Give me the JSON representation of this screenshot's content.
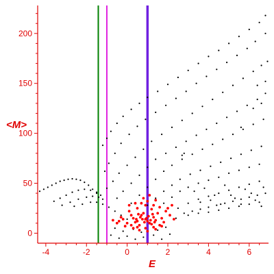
{
  "chart_data": {
    "type": "scatter",
    "xlabel": "E",
    "ylabel": "<M>",
    "xlim": [
      -4.4,
      6.95
    ],
    "ylim": [
      -10,
      228
    ],
    "x_ticks": [
      -4,
      -2,
      0,
      2,
      4,
      6
    ],
    "x_tick_labels": [
      "-4",
      "-2",
      "0",
      "2",
      "4",
      "6"
    ],
    "y_ticks": [
      0,
      50,
      100,
      150,
      200
    ],
    "y_tick_labels": [
      "0",
      "50",
      "100",
      "150",
      "200"
    ],
    "axis_color": "#e00000",
    "grid": false,
    "legend": "none",
    "vertical_lines": [
      {
        "x": -1.42,
        "color": "#008000"
      },
      {
        "x": -1.0,
        "color": "#e020e0"
      },
      {
        "x": 1.0,
        "color": "#7020e0"
      }
    ],
    "series": [
      {
        "color": "#000000",
        "marker_size": 1.1,
        "points": [
          [
            -4.3,
            42
          ],
          [
            -4.1,
            44
          ],
          [
            -3.9,
            46
          ],
          [
            -3.7,
            48
          ],
          [
            -3.5,
            50
          ],
          [
            -3.3,
            52
          ],
          [
            -3.1,
            53
          ],
          [
            -2.9,
            54
          ],
          [
            -2.7,
            54.5
          ],
          [
            -2.5,
            54
          ],
          [
            -2.3,
            53
          ],
          [
            -2.1,
            51
          ],
          [
            -1.9,
            48
          ],
          [
            -1.7,
            44
          ],
          [
            -1.5,
            40
          ],
          [
            -3.6,
            32
          ],
          [
            -3.3,
            35
          ],
          [
            -3.0,
            38
          ],
          [
            -2.7,
            41
          ],
          [
            -2.4,
            43
          ],
          [
            -2.1,
            44
          ],
          [
            -1.8,
            43
          ],
          [
            -1.5,
            41
          ],
          [
            -1.3,
            38
          ],
          [
            -3.2,
            28
          ],
          [
            -2.8,
            31
          ],
          [
            -2.4,
            34
          ],
          [
            -2.0,
            36
          ],
          [
            -1.7,
            37
          ],
          [
            -1.4,
            36
          ],
          [
            -1.2,
            34
          ],
          [
            -2.6,
            27
          ],
          [
            -2.2,
            29
          ],
          [
            -1.8,
            31
          ],
          [
            -1.5,
            31
          ],
          [
            -1.2,
            29
          ],
          [
            -0.9,
            26
          ],
          [
            -0.6,
            22
          ],
          [
            -0.3,
            18
          ],
          [
            0.0,
            14
          ],
          [
            -1.2,
            88
          ],
          [
            -1.0,
            95
          ],
          [
            -0.8,
            102
          ],
          [
            -0.5,
            110
          ],
          [
            -0.2,
            117
          ],
          [
            0.2,
            124
          ],
          [
            0.6,
            130
          ],
          [
            1.0,
            136
          ],
          [
            1.5,
            142
          ],
          [
            2.0,
            149
          ],
          [
            2.5,
            156
          ],
          [
            3.0,
            163
          ],
          [
            3.5,
            170
          ],
          [
            4.0,
            177
          ],
          [
            4.5,
            183
          ],
          [
            5.0,
            190
          ],
          [
            5.5,
            197
          ],
          [
            6.0,
            204
          ],
          [
            6.5,
            211
          ],
          [
            6.8,
            218
          ],
          [
            -1.1,
            62
          ],
          [
            -0.9,
            70
          ],
          [
            -0.6,
            80
          ],
          [
            -0.3,
            90
          ],
          [
            0.1,
            99
          ],
          [
            0.5,
            107
          ],
          [
            0.9,
            114
          ],
          [
            1.4,
            121
          ],
          [
            1.9,
            128
          ],
          [
            2.4,
            135
          ],
          [
            2.9,
            142
          ],
          [
            3.4,
            150
          ],
          [
            3.9,
            157
          ],
          [
            4.4,
            164
          ],
          [
            4.9,
            171
          ],
          [
            5.4,
            178
          ],
          [
            5.9,
            185
          ],
          [
            6.3,
            192
          ],
          [
            6.8,
            200
          ],
          [
            -1.0,
            45
          ],
          [
            -0.7,
            52
          ],
          [
            -0.4,
            60
          ],
          [
            0.0,
            68
          ],
          [
            0.4,
            76
          ],
          [
            0.8,
            84
          ],
          [
            1.2,
            92
          ],
          [
            1.7,
            99
          ],
          [
            2.2,
            106
          ],
          [
            2.7,
            113
          ],
          [
            3.2,
            120
          ],
          [
            3.7,
            127
          ],
          [
            4.2,
            134
          ],
          [
            4.7,
            141
          ],
          [
            5.2,
            148
          ],
          [
            5.7,
            155
          ],
          [
            6.2,
            162
          ],
          [
            6.6,
            168
          ],
          [
            6.9,
            172
          ],
          [
            -0.5,
            35
          ],
          [
            -0.2,
            42
          ],
          [
            0.2,
            50
          ],
          [
            0.6,
            58
          ],
          [
            1.0,
            66
          ],
          [
            1.4,
            74
          ],
          [
            1.9,
            80
          ],
          [
            2.4,
            86
          ],
          [
            2.9,
            92
          ],
          [
            3.4,
            98
          ],
          [
            3.9,
            104
          ],
          [
            4.4,
            110
          ],
          [
            4.9,
            116
          ],
          [
            5.4,
            122
          ],
          [
            5.9,
            128
          ],
          [
            6.4,
            134
          ],
          [
            6.8,
            140
          ],
          [
            0.2,
            30
          ],
          [
            0.6,
            38
          ],
          [
            1.0,
            46
          ],
          [
            1.4,
            54
          ],
          [
            1.8,
            62
          ],
          [
            2.2,
            68
          ],
          [
            2.7,
            74
          ],
          [
            3.2,
            79
          ],
          [
            3.7,
            84
          ],
          [
            4.2,
            89
          ],
          [
            4.7,
            94
          ],
          [
            5.2,
            99
          ],
          [
            5.7,
            104
          ],
          [
            6.2,
            109
          ],
          [
            6.7,
            114
          ],
          [
            1.0,
            28
          ],
          [
            1.4,
            35
          ],
          [
            1.8,
            42
          ],
          [
            2.2,
            48
          ],
          [
            2.6,
            54
          ],
          [
            3.1,
            59
          ],
          [
            3.6,
            63
          ],
          [
            4.1,
            67
          ],
          [
            4.6,
            71
          ],
          [
            5.1,
            75
          ],
          [
            5.6,
            79
          ],
          [
            6.1,
            83
          ],
          [
            6.6,
            87
          ],
          [
            1.8,
            30
          ],
          [
            2.2,
            36
          ],
          [
            2.6,
            42
          ],
          [
            3.0,
            46
          ],
          [
            3.5,
            50
          ],
          [
            4.0,
            53
          ],
          [
            4.5,
            56
          ],
          [
            5.0,
            60
          ],
          [
            5.5,
            63
          ],
          [
            6.0,
            66
          ],
          [
            6.5,
            69
          ],
          [
            2.5,
            25
          ],
          [
            3.0,
            30
          ],
          [
            3.5,
            34
          ],
          [
            4.0,
            37
          ],
          [
            4.5,
            40
          ],
          [
            5.0,
            43
          ],
          [
            5.5,
            46
          ],
          [
            6.0,
            49
          ],
          [
            6.5,
            52
          ],
          [
            2.4,
            15
          ],
          [
            2.8,
            20
          ],
          [
            3.2,
            22
          ],
          [
            3.6,
            24
          ],
          [
            4.0,
            26
          ],
          [
            4.4,
            28
          ],
          [
            4.8,
            30
          ],
          [
            5.2,
            32
          ],
          [
            5.6,
            34
          ],
          [
            6.0,
            36
          ],
          [
            6.4,
            38
          ],
          [
            6.8,
            40
          ],
          [
            3.0,
            18
          ],
          [
            3.5,
            20
          ],
          [
            4.0,
            21
          ],
          [
            4.5,
            23
          ],
          [
            5.0,
            25
          ],
          [
            5.5,
            27
          ],
          [
            6.0,
            29
          ],
          [
            6.5,
            31
          ],
          [
            3.3,
            42
          ],
          [
            3.8,
            45
          ],
          [
            4.3,
            38
          ],
          [
            4.8,
            48
          ],
          [
            5.3,
            35
          ],
          [
            5.8,
            44
          ],
          [
            6.3,
            33
          ],
          [
            6.7,
            46
          ],
          [
            3.6,
            31
          ],
          [
            4.1,
            33
          ],
          [
            4.6,
            29
          ],
          [
            5.1,
            38
          ],
          [
            5.6,
            29
          ],
          [
            6.1,
            40
          ],
          [
            6.6,
            27
          ],
          [
            -0.8,
            -2
          ],
          [
            -0.4,
            -5
          ],
          [
            0.0,
            -3
          ],
          [
            0.4,
            -6
          ],
          [
            0.8,
            -4
          ],
          [
            1.3,
            -2
          ],
          [
            1.7,
            -6
          ],
          [
            2.1,
            -1
          ],
          [
            -0.6,
            5
          ],
          [
            -0.2,
            2
          ],
          [
            0.3,
            4
          ],
          [
            0.7,
            1
          ],
          [
            1.5,
            3
          ],
          [
            1.9,
            6
          ],
          [
            6.2,
            125
          ],
          [
            6.6,
            130
          ],
          [
            6.4,
            148
          ],
          [
            6.8,
            152
          ],
          [
            5.6,
            106
          ],
          [
            2.8,
            80
          ],
          [
            2.7,
            78
          ]
        ]
      },
      {
        "color": "#ff0000",
        "marker_size": 1.9,
        "points": [
          [
            0.3,
            15
          ],
          [
            0.5,
            12
          ],
          [
            0.7,
            18
          ],
          [
            0.9,
            14
          ],
          [
            1.1,
            10
          ],
          [
            1.3,
            16
          ],
          [
            0.6,
            8
          ],
          [
            0.8,
            20
          ],
          [
            1.0,
            12
          ],
          [
            1.2,
            9
          ],
          [
            1.4,
            13
          ],
          [
            0.4,
            11
          ],
          [
            0.2,
            18
          ],
          [
            -0.2,
            14
          ],
          [
            0.0,
            10
          ],
          [
            -0.4,
            12
          ],
          [
            0.1,
            22
          ],
          [
            0.5,
            25
          ],
          [
            0.9,
            28
          ],
          [
            1.2,
            24
          ],
          [
            1.5,
            20
          ],
          [
            1.7,
            15
          ],
          [
            1.8,
            11
          ],
          [
            1.6,
            8
          ],
          [
            1.3,
            6
          ],
          [
            0.9,
            5
          ],
          [
            0.5,
            6
          ],
          [
            0.2,
            8
          ],
          [
            -0.1,
            7
          ],
          [
            -0.3,
            16
          ],
          [
            -0.5,
            10
          ],
          [
            -0.7,
            13
          ],
          [
            0.7,
            30
          ],
          [
            1.0,
            32
          ],
          [
            1.3,
            28
          ],
          [
            1.6,
            26
          ],
          [
            1.9,
            22
          ],
          [
            2.1,
            18
          ],
          [
            2.3,
            14
          ],
          [
            2.0,
            25
          ],
          [
            2.2,
            28
          ],
          [
            0.4,
            30
          ],
          [
            0.1,
            28
          ],
          [
            0.8,
            35
          ],
          [
            1.1,
            38
          ],
          [
            1.4,
            33
          ],
          [
            0.3,
            5
          ],
          [
            0.6,
            3
          ],
          [
            1.0,
            2
          ],
          [
            1.4,
            4
          ],
          [
            1.7,
            7
          ],
          [
            0.95,
            15
          ],
          [
            1.05,
            17
          ],
          [
            0.85,
            11
          ],
          [
            1.15,
            13
          ],
          [
            0.75,
            14
          ],
          [
            0.65,
            16
          ],
          [
            1.25,
            19
          ],
          [
            0.55,
            19
          ],
          [
            0.45,
            14
          ],
          [
            1.35,
            11
          ]
        ]
      }
    ]
  }
}
